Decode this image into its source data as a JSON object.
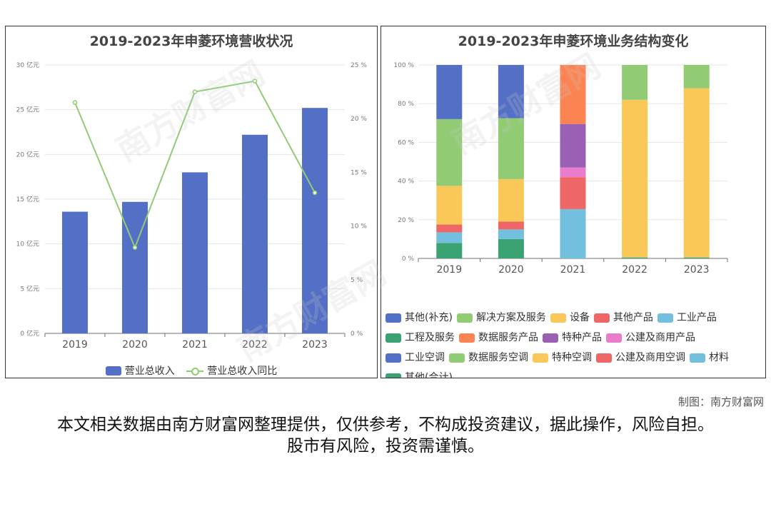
{
  "charts": {
    "left": {
      "title": "2019-2023年申菱环境营收状况",
      "legend": {
        "bar": "营业总收入",
        "line": "营业总收入同比"
      }
    },
    "right": {
      "title": "2019-2023年申菱环境业务结构变化"
    }
  },
  "credit": "制图：南方财富网",
  "disclaimer": "本文相关数据由南方财富网整理提供，仅供参考，不构成投资建议，据此操作，风险自担。股市有风险，投资需谨慎。",
  "watermark": "南方财富网 southmoney.com",
  "chart_data": [
    {
      "type": "bar",
      "title": "2019-2023年申菱环境营收状况",
      "categories": [
        "2019",
        "2020",
        "2021",
        "2022",
        "2023"
      ],
      "y_ticks": [
        "0 亿元",
        "5 亿元",
        "10 亿元",
        "15 亿元",
        "20 亿元",
        "25 亿元",
        "30 亿元"
      ],
      "y2_ticks": [
        "0 %",
        "5 %",
        "10 %",
        "15 %",
        "20 %",
        "25 %"
      ],
      "ylim": [
        0,
        30
      ],
      "y2lim": [
        0,
        25
      ],
      "series": [
        {
          "name": "营业总收入",
          "type": "bar",
          "color": "#5470c6",
          "values": [
            13.6,
            14.7,
            18.0,
            22.2,
            25.2
          ]
        },
        {
          "name": "营业总收入同比",
          "type": "line",
          "axis": "right",
          "color": "#91cc75",
          "values": [
            21.5,
            8.0,
            22.5,
            23.5,
            13.1
          ]
        }
      ]
    },
    {
      "type": "bar",
      "stacked": true,
      "title": "2019-2023年申菱环境业务结构变化",
      "categories": [
        "2019",
        "2020",
        "2021",
        "2022",
        "2023"
      ],
      "y_ticks": [
        "0 %",
        "20 %",
        "40 %",
        "60 %",
        "80 %",
        "100 %"
      ],
      "ylim": [
        0,
        100
      ],
      "series": [
        {
          "name": "其他(补充)",
          "color": "#5470c6",
          "values": [
            0,
            0,
            0,
            0,
            0
          ]
        },
        {
          "name": "解决方案及服务",
          "color": "#91cc75",
          "values": [
            0,
            0,
            0,
            0,
            0
          ]
        },
        {
          "name": "设备",
          "color": "#fac858",
          "values": [
            0,
            0,
            0,
            0,
            0
          ]
        },
        {
          "name": "其他产品",
          "color": "#ee6666",
          "values": [
            0,
            0,
            0,
            0,
            0
          ]
        },
        {
          "name": "工业产品",
          "color": "#73c0de",
          "values": [
            0,
            0,
            0,
            0,
            0
          ]
        },
        {
          "name": "工程及服务",
          "color": "#3ba272",
          "values": [
            0,
            0,
            0,
            0,
            0
          ]
        },
        {
          "name": "数据服务产品",
          "color": "#fc8452",
          "values": [
            0,
            0,
            30.5,
            0,
            0
          ]
        },
        {
          "name": "特种产品",
          "color": "#9a60b4",
          "values": [
            0,
            0,
            22.5,
            0,
            0
          ]
        },
        {
          "name": "公建及商用产品",
          "color": "#ea7ccc",
          "values": [
            0,
            0,
            5.0,
            0,
            0
          ]
        },
        {
          "name": "工业空调",
          "color": "#5470c6",
          "values": [
            28.0,
            27.5,
            0,
            0,
            0
          ]
        },
        {
          "name": "数据服务空调",
          "color": "#91cc75",
          "values": [
            34.5,
            31.5,
            0,
            18.0,
            12.0
          ]
        },
        {
          "name": "特种空调",
          "color": "#fac858",
          "values": [
            20.0,
            22.0,
            0,
            81.5,
            87.5
          ]
        },
        {
          "name": "公建及商用空调",
          "color": "#ee6666",
          "values": [
            4.0,
            4.0,
            16.5,
            0,
            0
          ]
        },
        {
          "name": "材料",
          "color": "#73c0de",
          "values": [
            5.5,
            5.0,
            25.5,
            0,
            0
          ]
        },
        {
          "name": "其他(合计)",
          "color": "#3ba272",
          "values": [
            8.0,
            10.0,
            0,
            0.5,
            0.5
          ]
        }
      ]
    }
  ]
}
